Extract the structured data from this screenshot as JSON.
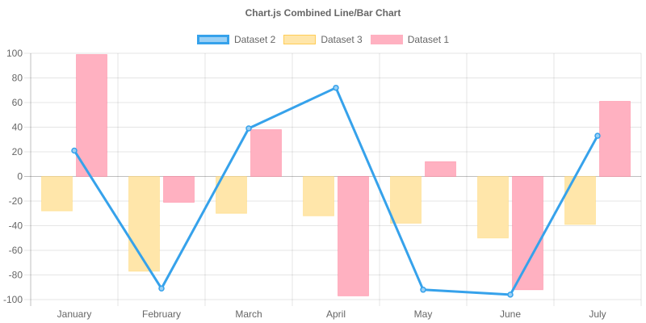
{
  "chart_data": {
    "type": "bar",
    "title": "Chart.js Combined Line/Bar Chart",
    "categories": [
      "January",
      "February",
      "March",
      "April",
      "May",
      "June",
      "July"
    ],
    "ylim": [
      -100,
      100
    ],
    "yticks": [
      100,
      80,
      60,
      40,
      20,
      0,
      -20,
      -40,
      -60,
      -80,
      -100
    ],
    "grid": true,
    "legend_position": "top",
    "series": [
      {
        "name": "Dataset 2",
        "type": "line",
        "values": [
          21,
          -91,
          39,
          72,
          -92,
          -96,
          33
        ],
        "color": "#36a2eb",
        "fill": "#9ad0f5"
      },
      {
        "name": "Dataset 3",
        "type": "bar",
        "values": [
          -28,
          -77,
          -30,
          -32,
          -38,
          -50,
          -39
        ],
        "color": "#ffe6aa",
        "border": "#ffcd56"
      },
      {
        "name": "Dataset 1",
        "type": "bar",
        "values": [
          99,
          -21,
          38,
          -97,
          12,
          -92,
          61
        ],
        "color": "#ffb1c1",
        "border": "#ff6384"
      }
    ]
  }
}
